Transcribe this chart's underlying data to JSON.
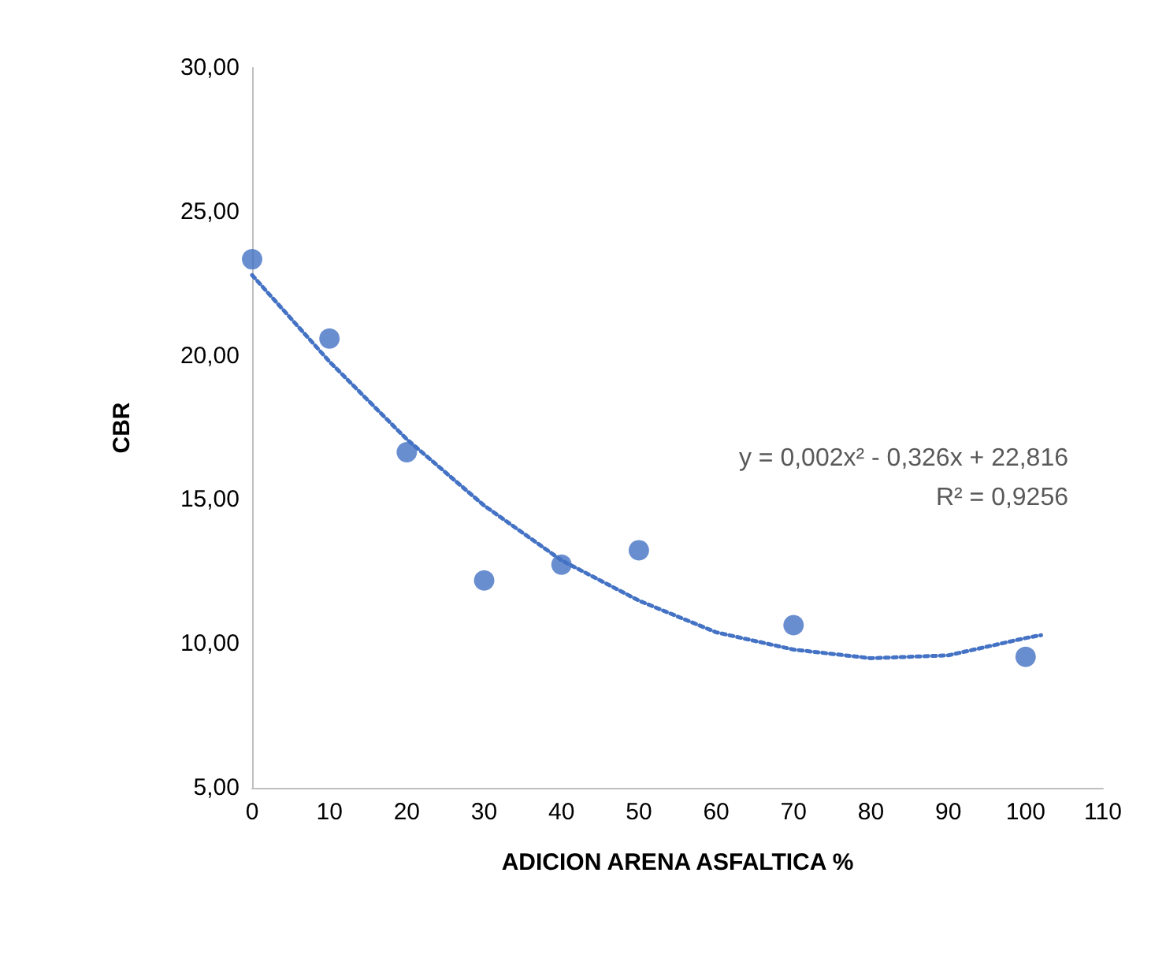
{
  "chart_data": {
    "type": "scatter",
    "xlabel": "ADICION ARENA ASFALTICA %",
    "ylabel": "CBR",
    "xlim": [
      0,
      110
    ],
    "xticks": [
      0,
      10,
      20,
      30,
      40,
      50,
      60,
      70,
      80,
      90,
      100,
      110
    ],
    "ylim": [
      5,
      30
    ],
    "yticks": [
      {
        "value": 5,
        "label": "5,00"
      },
      {
        "value": 10,
        "label": "10,00"
      },
      {
        "value": 15,
        "label": "15,00"
      },
      {
        "value": 20,
        "label": "20,00"
      },
      {
        "value": 25,
        "label": "25,00"
      },
      {
        "value": 30,
        "label": "30,00"
      }
    ],
    "grid": false,
    "series": [
      {
        "color": "#4472c4",
        "marker": "circle",
        "x": [
          0,
          10,
          20,
          30,
          40,
          50,
          70,
          100
        ],
        "values": [
          23.35,
          20.6,
          16.65,
          12.2,
          12.75,
          13.25,
          10.65,
          9.55
        ]
      },
      {
        "type": "line",
        "color": "#4472c4",
        "marker": "none",
        "line_style": "dotted",
        "x": [
          0,
          10,
          20,
          30,
          40,
          50,
          60,
          70,
          80,
          90,
          100,
          102
        ],
        "values": [
          22.8,
          19.8,
          17.1,
          14.8,
          12.9,
          11.5,
          10.4,
          9.8,
          9.5,
          9.6,
          10.2,
          10.3
        ]
      }
    ],
    "annotations": [
      "y = 0,002x² - 0,326x + 22,816",
      "R² = 0,9256"
    ]
  }
}
